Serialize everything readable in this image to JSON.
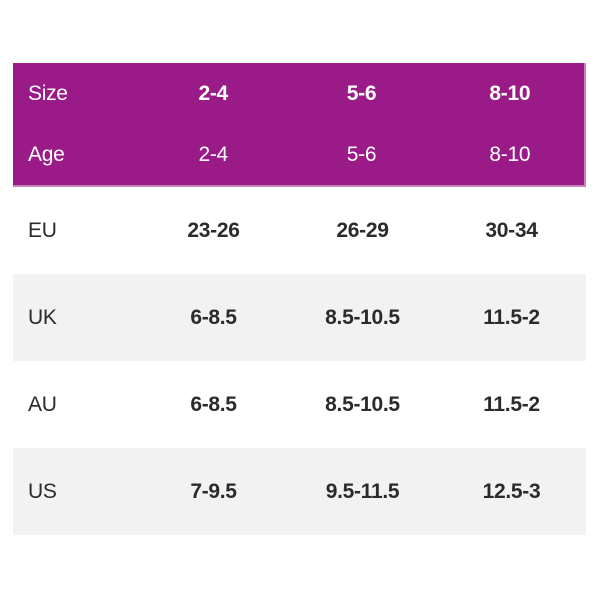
{
  "colors": {
    "header_bg": "#9a1b87",
    "header_text": "#ffffff",
    "header_edge": "#c583b8",
    "row_alt_bg": "#f2f2f2",
    "row_bg": "#ffffff",
    "text_color": "#2b2b2b"
  },
  "chart_data": {
    "type": "table",
    "title": "",
    "header_rows": [
      {
        "label": "Size",
        "values": [
          "2-4",
          "5-6",
          "8-10"
        ]
      },
      {
        "label": "Age",
        "values": [
          "2-4",
          "5-6",
          "8-10"
        ]
      }
    ],
    "rows": [
      {
        "label": "EU",
        "values": [
          "23-26",
          "26-29",
          "30-34"
        ]
      },
      {
        "label": "UK",
        "values": [
          "6-8.5",
          "8.5-10.5",
          "11.5-2"
        ]
      },
      {
        "label": "AU",
        "values": [
          "6-8.5",
          "8.5-10.5",
          "11.5-2"
        ]
      },
      {
        "label": "US",
        "values": [
          "7-9.5",
          "9.5-11.5",
          "12.5-3"
        ]
      }
    ]
  }
}
